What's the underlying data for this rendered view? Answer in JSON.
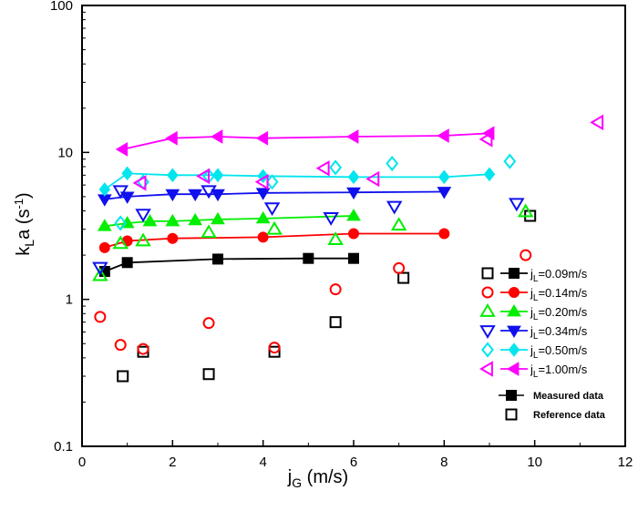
{
  "chart_data": {
    "type": "scatter",
    "title": "",
    "xlabel": "j",
    "xlabel_sub": "G",
    "xlabel_unit": " (m/s)",
    "ylabel": "k",
    "ylabel_sub": "L",
    "ylabel_mid": "a (s",
    "ylabel_sup": "-1",
    "ylabel_end": ")",
    "xlim": [
      0,
      12
    ],
    "ylim": [
      0.1,
      100
    ],
    "yscale": "log",
    "x_ticks": [
      "0",
      "2",
      "4",
      "6",
      "8",
      "10",
      "12"
    ],
    "y_ticks": [
      "0.1",
      "1",
      "10",
      "100"
    ],
    "grid": false,
    "legend_position": "bottom-right",
    "series": [
      {
        "name": "j",
        "sub": "L",
        "suffix": "=0.09m/s",
        "color": "#000000",
        "measured": [
          [
            0.5,
            1.55
          ],
          [
            1.0,
            1.78
          ],
          [
            3.0,
            1.88
          ],
          [
            5.0,
            1.9
          ],
          [
            6.0,
            1.9
          ]
        ],
        "reference": [
          [
            0.9,
            0.3
          ],
          [
            1.35,
            0.44
          ],
          [
            2.8,
            0.31
          ],
          [
            4.25,
            0.44
          ],
          [
            5.6,
            0.7
          ],
          [
            7.1,
            1.4
          ],
          [
            9.9,
            3.7
          ]
        ],
        "filled_marker": "square",
        "open_marker": "square"
      },
      {
        "name": "j",
        "sub": "L",
        "suffix": "=0.14m/s",
        "color": "#ff0000",
        "measured": [
          [
            0.5,
            2.25
          ],
          [
            1.0,
            2.5
          ],
          [
            2.0,
            2.6
          ],
          [
            4.0,
            2.65
          ],
          [
            6.0,
            2.8
          ],
          [
            8.0,
            2.8
          ]
        ],
        "reference": [
          [
            0.4,
            0.76
          ],
          [
            0.85,
            0.49
          ],
          [
            1.35,
            0.46
          ],
          [
            2.8,
            0.69
          ],
          [
            4.25,
            0.47
          ],
          [
            5.6,
            1.17
          ],
          [
            7.0,
            1.63
          ],
          [
            9.8,
            2.0
          ]
        ],
        "filled_marker": "circle",
        "open_marker": "circle"
      },
      {
        "name": "j",
        "sub": "L",
        "suffix": "=0.20m/s",
        "color": "#00ee00",
        "measured": [
          [
            0.5,
            3.15
          ],
          [
            1.0,
            3.3
          ],
          [
            1.5,
            3.4
          ],
          [
            2.0,
            3.4
          ],
          [
            2.5,
            3.45
          ],
          [
            3.0,
            3.5
          ],
          [
            4.0,
            3.55
          ],
          [
            6.0,
            3.7
          ]
        ],
        "reference": [
          [
            0.4,
            1.45
          ],
          [
            0.85,
            2.4
          ],
          [
            1.35,
            2.5
          ],
          [
            2.8,
            2.85
          ],
          [
            4.25,
            3.0
          ],
          [
            5.6,
            2.55
          ],
          [
            7.0,
            3.2
          ],
          [
            9.8,
            3.95
          ]
        ],
        "filled_marker": "triangle-up",
        "open_marker": "triangle-up"
      },
      {
        "name": "j",
        "sub": "L",
        "suffix": "=0.34m/s",
        "color": "#1010ee",
        "measured": [
          [
            0.5,
            4.8
          ],
          [
            1.0,
            5.0
          ],
          [
            2.0,
            5.2
          ],
          [
            2.5,
            5.2
          ],
          [
            3.0,
            5.2
          ],
          [
            4.0,
            5.3
          ],
          [
            6.0,
            5.35
          ],
          [
            8.0,
            5.4
          ]
        ],
        "reference": [
          [
            0.4,
            1.65
          ],
          [
            0.85,
            5.5
          ],
          [
            1.35,
            3.8
          ],
          [
            2.8,
            5.5
          ],
          [
            4.2,
            4.2
          ],
          [
            5.5,
            3.6
          ],
          [
            6.9,
            4.3
          ],
          [
            9.6,
            4.5
          ]
        ],
        "filled_marker": "triangle-down",
        "open_marker": "triangle-down"
      },
      {
        "name": "j",
        "sub": "L",
        "suffix": "=0.50m/s",
        "color": "#00e5ee",
        "measured": [
          [
            0.5,
            5.6
          ],
          [
            1.0,
            7.2
          ],
          [
            2.0,
            7.0
          ],
          [
            3.0,
            7.0
          ],
          [
            4.0,
            6.9
          ],
          [
            6.0,
            6.8
          ],
          [
            8.0,
            6.8
          ],
          [
            9.0,
            7.1
          ]
        ],
        "reference": [
          [
            0.85,
            3.3
          ],
          [
            1.35,
            6.3
          ],
          [
            2.8,
            6.9
          ],
          [
            4.2,
            6.3
          ],
          [
            5.6,
            7.9
          ],
          [
            6.85,
            8.4
          ],
          [
            9.45,
            8.7
          ]
        ],
        "filled_marker": "diamond",
        "open_marker": "diamond"
      },
      {
        "name": "j",
        "sub": "L",
        "suffix": "=1.00m/s",
        "color": "#ff00ff",
        "measured": [
          [
            0.9,
            10.5
          ],
          [
            2.0,
            12.5
          ],
          [
            3.0,
            12.8
          ],
          [
            4.0,
            12.5
          ],
          [
            6.0,
            12.8
          ],
          [
            8.0,
            13.0
          ],
          [
            9.0,
            13.5
          ]
        ],
        "reference": [
          [
            1.3,
            6.2
          ],
          [
            2.7,
            6.9
          ],
          [
            4.0,
            6.3
          ],
          [
            5.35,
            7.8
          ],
          [
            6.45,
            6.6
          ],
          [
            8.95,
            12.3
          ],
          [
            11.4,
            16.0
          ]
        ],
        "filled_marker": "triangle-left",
        "open_marker": "triangle-left"
      }
    ],
    "extra_legend": {
      "measured_label": "Measured data",
      "reference_label": "Reference data"
    }
  }
}
